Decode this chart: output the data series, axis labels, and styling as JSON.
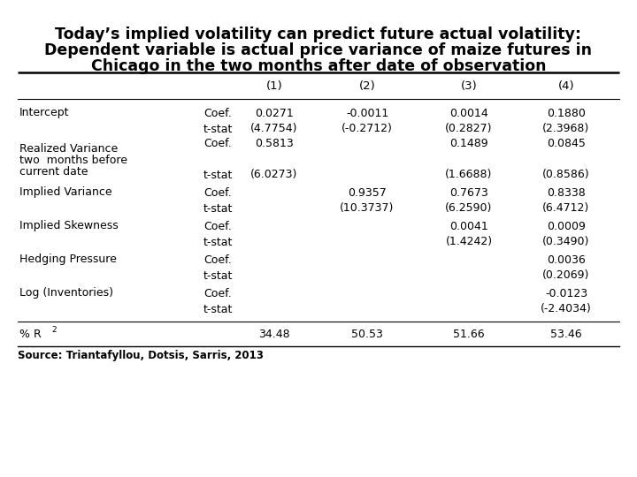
{
  "title_line1": "Today’s implied volatility can predict future actual volatility:",
  "title_line2": "Dependent variable is actual price variance of maize futures in",
  "title_line3": "Chicago in the two months after date of observation",
  "title_fontsize": 12.5,
  "source": "Source: Triantafyllou, Dotsis, Sarris, 2013",
  "col_headers": [
    "(1)",
    "(2)",
    "(3)",
    "(4)"
  ],
  "label_names": [
    "Intercept",
    "Realized Variance",
    "Implied Variance",
    "Implied Skewness",
    "Hedging Pressure",
    "Log (Inventories)"
  ],
  "sublabels": [
    "",
    "two  months before\ncurrent date",
    "",
    "",
    "",
    ""
  ],
  "type_labels": [
    "Coef.",
    "t-stat"
  ],
  "data": [
    [
      "0.0271",
      "-0.0011",
      "0.0014",
      "0.1880"
    ],
    [
      "(4.7754)",
      "(-0.2712)",
      "(0.2827)",
      "(2.3968)"
    ],
    [
      "0.5813",
      "",
      "0.1489",
      "0.0845"
    ],
    [
      "(6.0273)",
      "",
      "(1.6688)",
      "(0.8586)"
    ],
    [
      "",
      "0.9357",
      "0.7673",
      "0.8338"
    ],
    [
      "",
      "(10.3737)",
      "(6.2590)",
      "(6.4712)"
    ],
    [
      "",
      "",
      "0.0041",
      "0.0009"
    ],
    [
      "",
      "",
      "(1.4242)",
      "(0.3490)"
    ],
    [
      "",
      "",
      "",
      "0.0036"
    ],
    [
      "",
      "",
      "",
      "(0.2069)"
    ],
    [
      "",
      "",
      "",
      "-0.0123"
    ],
    [
      "",
      "",
      "",
      "(-2.4034)"
    ]
  ],
  "r2_vals": [
    "34.48",
    "50.53",
    "51.66",
    "53.46"
  ],
  "bg_color": "#ffffff",
  "text_color": "#000000"
}
